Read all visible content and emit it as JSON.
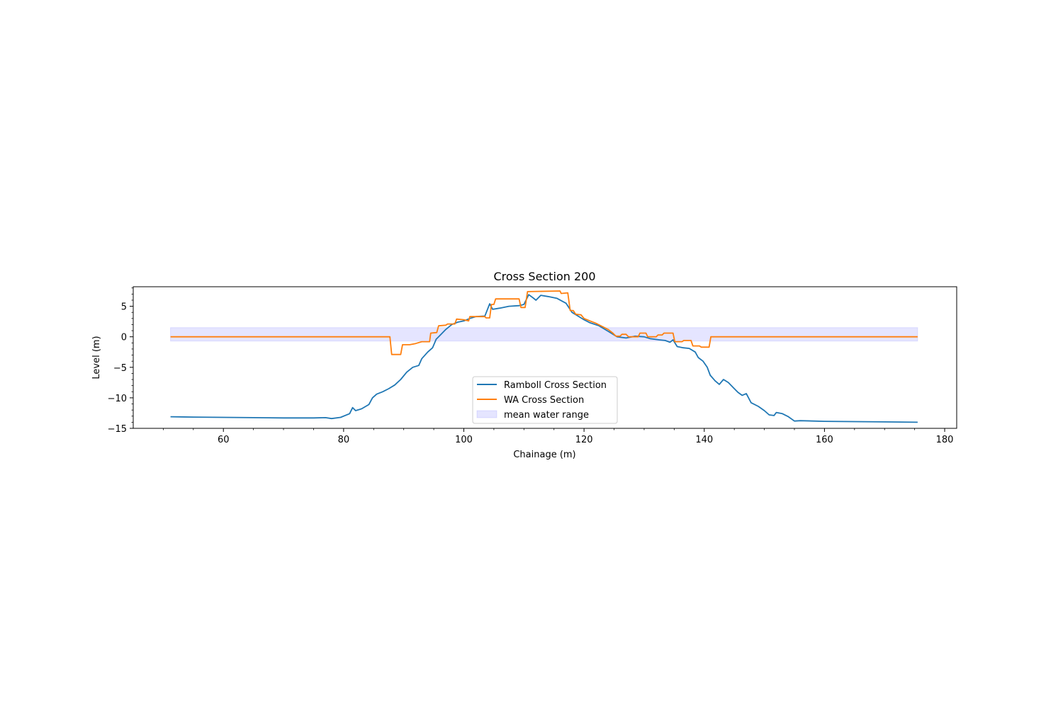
{
  "chart_data": {
    "type": "line",
    "title": "Cross Section 200",
    "xlabel": "Chainage (m)",
    "ylabel": "Level (m)",
    "xlim": [
      45,
      182
    ],
    "ylim": [
      -15,
      8.2
    ],
    "xticks": [
      60,
      80,
      100,
      120,
      140,
      160,
      180
    ],
    "yticks": [
      -15,
      -10,
      -5,
      0,
      5
    ],
    "ytick_labels": [
      "−15",
      "−10",
      "−5",
      "0",
      "5"
    ],
    "minor_ticks": true,
    "grid": false,
    "legend_position": "lower center",
    "series": [
      {
        "name": "Ramboll Cross Section",
        "color": "#1f77b4",
        "points": [
          [
            51.2,
            -13.1
          ],
          [
            55,
            -13.15
          ],
          [
            60,
            -13.2
          ],
          [
            65,
            -13.25
          ],
          [
            70,
            -13.3
          ],
          [
            75,
            -13.3
          ],
          [
            77,
            -13.25
          ],
          [
            78,
            -13.4
          ],
          [
            79.5,
            -13.2
          ],
          [
            81,
            -12.6
          ],
          [
            81.5,
            -11.6
          ],
          [
            82,
            -12.1
          ],
          [
            83,
            -11.8
          ],
          [
            84.2,
            -11.1
          ],
          [
            84.8,
            -10.0
          ],
          [
            85.5,
            -9.4
          ],
          [
            86.5,
            -9.0
          ],
          [
            87.5,
            -8.5
          ],
          [
            88.5,
            -7.9
          ],
          [
            89.5,
            -7.0
          ],
          [
            90.5,
            -5.8
          ],
          [
            91.5,
            -5.0
          ],
          [
            92.5,
            -4.7
          ],
          [
            93,
            -3.6
          ],
          [
            94,
            -2.5
          ],
          [
            94.8,
            -1.8
          ],
          [
            95.4,
            -0.4
          ],
          [
            96,
            0.2
          ],
          [
            97,
            1.2
          ],
          [
            98,
            2.0
          ],
          [
            99,
            2.4
          ],
          [
            100,
            2.6
          ],
          [
            101,
            3.0
          ],
          [
            102,
            3.3
          ],
          [
            103.5,
            3.4
          ],
          [
            104.3,
            5.4
          ],
          [
            104.8,
            4.5
          ],
          [
            106,
            4.7
          ],
          [
            107.5,
            5.0
          ],
          [
            109.2,
            5.1
          ],
          [
            110,
            5.3
          ],
          [
            110.8,
            6.9
          ],
          [
            111.5,
            6.4
          ],
          [
            112,
            6.0
          ],
          [
            112.8,
            6.8
          ],
          [
            114,
            6.6
          ],
          [
            115.5,
            6.3
          ],
          [
            117,
            5.5
          ],
          [
            118,
            4.0
          ],
          [
            119,
            3.4
          ],
          [
            120,
            2.8
          ],
          [
            121,
            2.3
          ],
          [
            122.5,
            1.8
          ],
          [
            124,
            0.9
          ],
          [
            125.5,
            0.0
          ],
          [
            127,
            -0.2
          ],
          [
            128.5,
            0.1
          ],
          [
            130,
            0.0
          ],
          [
            131,
            -0.3
          ],
          [
            132.5,
            -0.5
          ],
          [
            133.5,
            -0.6
          ],
          [
            134.3,
            -0.9
          ],
          [
            134.8,
            -0.5
          ],
          [
            135.5,
            -1.6
          ],
          [
            136.5,
            -1.8
          ],
          [
            137.5,
            -1.9
          ],
          [
            138.5,
            -2.5
          ],
          [
            139,
            -3.4
          ],
          [
            139.8,
            -4.0
          ],
          [
            140.5,
            -5.0
          ],
          [
            141,
            -6.3
          ],
          [
            141.8,
            -7.2
          ],
          [
            142.5,
            -7.8
          ],
          [
            143.2,
            -7.0
          ],
          [
            144,
            -7.5
          ],
          [
            144.8,
            -8.3
          ],
          [
            145.6,
            -9.1
          ],
          [
            146.3,
            -9.6
          ],
          [
            147,
            -9.3
          ],
          [
            147.8,
            -10.8
          ],
          [
            149,
            -11.4
          ],
          [
            150,
            -12.1
          ],
          [
            150.8,
            -12.8
          ],
          [
            151.6,
            -12.9
          ],
          [
            152,
            -12.4
          ],
          [
            153,
            -12.6
          ],
          [
            154,
            -13.1
          ],
          [
            155,
            -13.8
          ],
          [
            156,
            -13.75
          ],
          [
            160,
            -13.85
          ],
          [
            165,
            -13.9
          ],
          [
            170,
            -13.95
          ],
          [
            175.5,
            -14.0
          ]
        ]
      },
      {
        "name": "WA Cross Section",
        "color": "#ff7f0e",
        "points": [
          [
            51.2,
            0.0
          ],
          [
            87.7,
            0.0
          ],
          [
            88,
            -2.9
          ],
          [
            89.5,
            -2.9
          ],
          [
            89.8,
            -1.3
          ],
          [
            91,
            -1.3
          ],
          [
            92,
            -1.1
          ],
          [
            93,
            -0.8
          ],
          [
            94.3,
            -0.8
          ],
          [
            94.5,
            0.6
          ],
          [
            95.5,
            0.7
          ],
          [
            95.8,
            1.8
          ],
          [
            97,
            1.9
          ],
          [
            97.3,
            2.1
          ],
          [
            98.5,
            2.1
          ],
          [
            98.8,
            2.9
          ],
          [
            100,
            2.8
          ],
          [
            100.8,
            2.6
          ],
          [
            101,
            3.3
          ],
          [
            103.5,
            3.3
          ],
          [
            103.7,
            3.1
          ],
          [
            104.3,
            3.1
          ],
          [
            104.6,
            5.3
          ],
          [
            105,
            5.3
          ],
          [
            105.3,
            6.2
          ],
          [
            109.2,
            6.2
          ],
          [
            109.5,
            4.8
          ],
          [
            110.2,
            4.8
          ],
          [
            110.6,
            7.4
          ],
          [
            116,
            7.5
          ],
          [
            116.2,
            7.1
          ],
          [
            117.3,
            7.2
          ],
          [
            117.7,
            4.3
          ],
          [
            118.2,
            4.3
          ],
          [
            118.6,
            3.7
          ],
          [
            119.5,
            3.6
          ],
          [
            120,
            3.0
          ],
          [
            121,
            2.6
          ],
          [
            122,
            2.2
          ],
          [
            123,
            1.7
          ],
          [
            124,
            1.2
          ],
          [
            124.8,
            0.6
          ],
          [
            125.3,
            0.1
          ],
          [
            126,
            0.1
          ],
          [
            126.3,
            0.4
          ],
          [
            127,
            0.4
          ],
          [
            127.4,
            0.0
          ],
          [
            129,
            0.0
          ],
          [
            129.3,
            0.6
          ],
          [
            130.3,
            0.6
          ],
          [
            130.6,
            0.0
          ],
          [
            132,
            0.0
          ],
          [
            132.3,
            0.3
          ],
          [
            133,
            0.3
          ],
          [
            133.3,
            0.6
          ],
          [
            134.8,
            0.6
          ],
          [
            135.1,
            -0.8
          ],
          [
            136.3,
            -0.8
          ],
          [
            136.6,
            -0.6
          ],
          [
            137.8,
            -0.6
          ],
          [
            138.1,
            -1.5
          ],
          [
            139.2,
            -1.5
          ],
          [
            139.5,
            -1.7
          ],
          [
            140.8,
            -1.7
          ],
          [
            141.1,
            0.0
          ],
          [
            175.5,
            0.0
          ]
        ]
      },
      {
        "name": "mean water range",
        "type": "band",
        "color": "#0000ff",
        "x_range": [
          51.2,
          175.5
        ],
        "y_range": [
          -0.7,
          1.5
        ]
      }
    ]
  }
}
